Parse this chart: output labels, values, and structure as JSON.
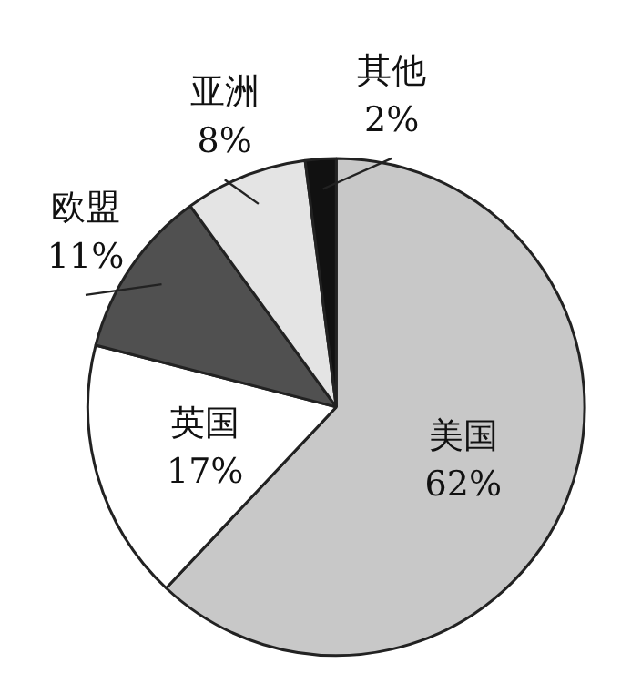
{
  "chart_data": {
    "type": "pie",
    "categories": [
      "美国",
      "英国",
      "欧盟",
      "亚洲",
      "其他"
    ],
    "values": [
      62,
      17,
      11,
      8,
      2
    ],
    "value_labels": [
      "62%",
      "17%",
      "11%",
      "8%",
      "2%"
    ],
    "colors": [
      "#c8c8c8",
      "#ffffff",
      "#505050",
      "#e4e4e4",
      "#111111"
    ]
  }
}
